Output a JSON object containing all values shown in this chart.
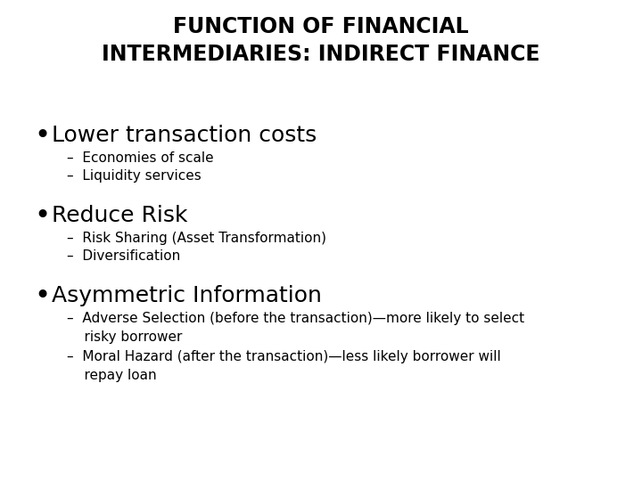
{
  "background_color": "#ffffff",
  "title_line1": "FUNCTION OF FINANCIAL",
  "title_line2": "INTERMEDIARIES: INDIRECT FINANCE",
  "title_fontsize": 17,
  "title_fontweight": "bold",
  "title_color": "#000000",
  "bullet1_text": "Lower transaction costs",
  "bullet1_size": 18,
  "sub1_1": "Economies of scale",
  "sub1_2": "Liquidity services",
  "sub_size": 11,
  "bullet2_text": "Reduce Risk",
  "bullet2_size": 18,
  "sub2_1": "Risk Sharing (Asset Transformation)",
  "sub2_2": "Diversification",
  "bullet3_text": "Asymmetric Information",
  "bullet3_size": 18,
  "sub3_1": "Adverse Selection (before the transaction)—more likely to select risky borrower",
  "sub3_2": "Moral Hazard (after the transaction)—less likely borrower will repay loan",
  "text_color": "#000000",
  "bullet_color": "#000000"
}
